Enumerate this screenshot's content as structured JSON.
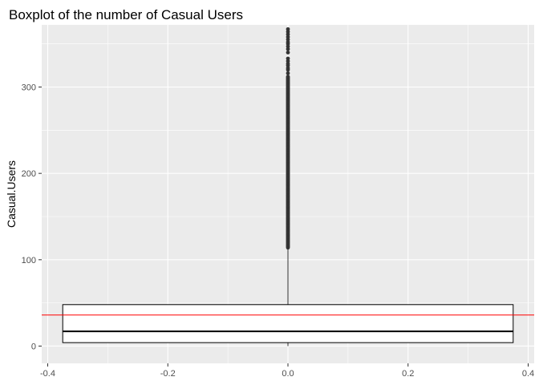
{
  "chart_data": {
    "type": "boxplot",
    "title": "Boxplot of the number of Casual Users",
    "xlabel": "",
    "ylabel": "Casual.Users",
    "xlim": [
      -0.41,
      0.41
    ],
    "ylim": [
      -20,
      372
    ],
    "x_ticks": [
      -0.4,
      -0.2,
      0.0,
      0.2,
      0.4
    ],
    "x_tick_labels": [
      "-0.4",
      "-0.2",
      "0.0",
      "0.2",
      "0.4"
    ],
    "y_ticks": [
      0,
      100,
      200,
      300
    ],
    "y_tick_labels": [
      "0",
      "100",
      "200",
      "300"
    ],
    "grid": true,
    "legend": "none",
    "box": {
      "x": 0.0,
      "xmin": -0.375,
      "xmax": 0.375,
      "q1": 4,
      "median": 17,
      "q3": 48,
      "whisker_low": 0,
      "whisker_high": 114
    },
    "outliers_range": [
      114,
      367
    ],
    "reference_line": {
      "y": 36,
      "color": "#ff0000",
      "label": ""
    },
    "colors": {
      "panel": "#ebebeb",
      "grid": "#ffffff",
      "box": "#000000",
      "outlier": "#333333"
    }
  }
}
